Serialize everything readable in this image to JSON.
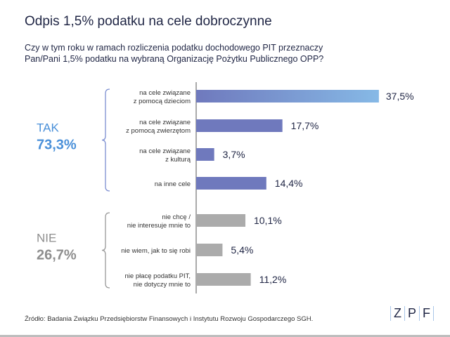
{
  "title": "Odpis 1,5% podatku na cele dobroczynne",
  "subtitle_line1": "Czy w tym roku w ramach rozliczenia podatku dochodowego PIT przeznaczy",
  "subtitle_line2": "Pan/Pani 1,5% podatku na wybraną Organizację Pożytku Publicznego OPP?",
  "source": "Źródło: Badania Związku Przedsiębiorstw Finansowych i Instytutu Rozwoju Gospodarczego SGH.",
  "logo": [
    "Z",
    "P",
    "F"
  ],
  "colors": {
    "tak": "#6f79bd",
    "tak_light": "#86b9e6",
    "nie": "#ababab",
    "tak_label": "#4a90d9",
    "nie_label": "#8e8e8e"
  },
  "chart_data": {
    "type": "bar",
    "orientation": "horizontal",
    "groups": [
      {
        "label": "TAK",
        "total": "73,3%",
        "color": "#6f79bd",
        "items": [
          {
            "label": [
              "na cele związane",
              "z pomocą dzieciom"
            ],
            "value": 37.5,
            "display": "37,5%"
          },
          {
            "label": [
              "na cele związane",
              "z pomocą zwierzętom"
            ],
            "value": 17.7,
            "display": "17,7%"
          },
          {
            "label": [
              "na cele związane",
              "z kulturą"
            ],
            "value": 3.7,
            "display": "3,7%"
          },
          {
            "label": [
              "na inne cele"
            ],
            "value": 14.4,
            "display": "14,4%"
          }
        ]
      },
      {
        "label": "NIE",
        "total": "26,7%",
        "color": "#ababab",
        "items": [
          {
            "label": [
              "nie chcę /",
              "nie interesuje mnie to"
            ],
            "value": 10.1,
            "display": "10,1%"
          },
          {
            "label": [
              "nie wiem, jak to się robi"
            ],
            "value": 5.4,
            "display": "5,4%"
          },
          {
            "label": [
              "nie płacę podatku PIT,",
              "nie dotyczy mnie to"
            ],
            "value": 11.2,
            "display": "11,2%"
          }
        ]
      }
    ]
  }
}
